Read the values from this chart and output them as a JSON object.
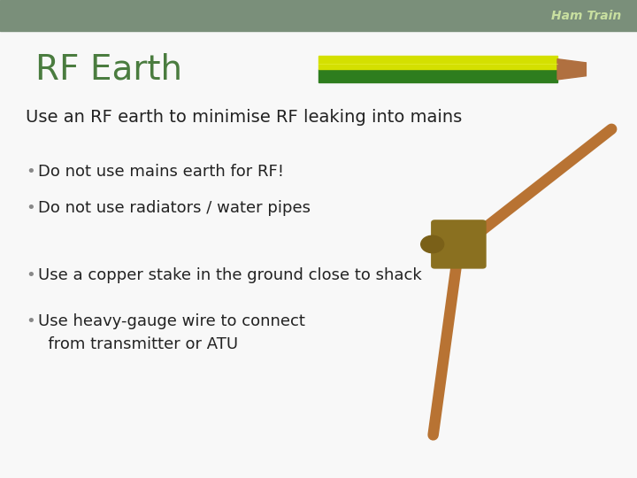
{
  "title": "RF Earth",
  "title_color": "#4a7c3f",
  "title_fontsize": 28,
  "header_bar_color": "#7a8f7a",
  "header_text": "Ham Train",
  "header_text_color": "#c8dfa0",
  "background_color": "#f8f8f8",
  "subtitle": "Use an RF earth to minimise RF leaking into mains",
  "subtitle_fontsize": 14,
  "subtitle_color": "#222222",
  "bullets": [
    "Do not use mains earth for RF!",
    "Do not use radiators / water pipes",
    "Use a copper stake in the ground close to shack",
    "Use heavy-gauge wire to connect\n  from transmitter or ATU"
  ],
  "bullet_fontsize": 13,
  "bullet_color": "#222222",
  "bullet_symbol": "•"
}
